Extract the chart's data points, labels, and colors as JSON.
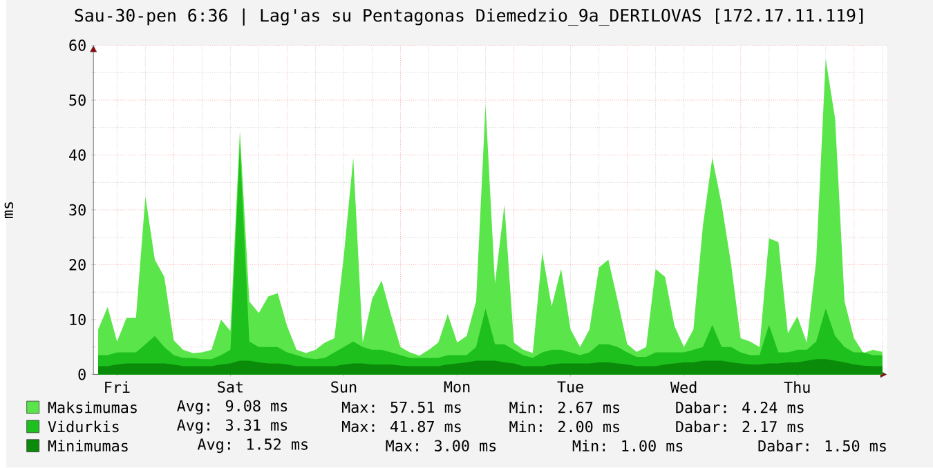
{
  "chart_data": {
    "type": "area",
    "title": "Sau-30-pen 6:36 | Lag'as su Pentagonas Diemedzio_9a_DERILOVAS [172.17.11.119]",
    "ylabel": "ms",
    "categories": [
      null,
      null,
      "Fri",
      null,
      null,
      null,
      null,
      null,
      null,
      null,
      null,
      null,
      null,
      null,
      "Sat",
      null,
      null,
      null,
      null,
      null,
      null,
      null,
      null,
      null,
      null,
      null,
      "Sun",
      null,
      null,
      null,
      null,
      null,
      null,
      null,
      null,
      null,
      null,
      null,
      "Mon",
      null,
      null,
      null,
      null,
      null,
      null,
      null,
      null,
      null,
      null,
      null,
      "Tue",
      null,
      null,
      null,
      null,
      null,
      null,
      null,
      null,
      null,
      null,
      null,
      "Wed",
      null,
      null,
      null,
      null,
      null,
      null,
      null,
      null,
      null,
      null,
      null,
      "Thu",
      null,
      null,
      null,
      null,
      null,
      null,
      null,
      null,
      null
    ],
    "ylim": [
      0,
      60
    ],
    "yticks": [
      0,
      10,
      20,
      30,
      40,
      50,
      60
    ],
    "grid": true,
    "legend": "bottom",
    "series": [
      {
        "name": "Maksimumas",
        "color": "#5ae64a",
        "values": [
          8.2,
          12.3,
          6,
          10.3,
          10.3,
          32.4,
          20.9,
          17.8,
          6.2,
          4.5,
          3.9,
          4,
          4.5,
          10,
          7.9,
          44.4,
          13.3,
          11.2,
          14.2,
          14.8,
          8.8,
          4.5,
          3.9,
          4.5,
          5.8,
          6.6,
          21.6,
          39.5,
          5.8,
          13.8,
          17.1,
          10.8,
          5,
          4,
          3.4,
          4.5,
          5.8,
          11,
          5.8,
          7,
          13.3,
          49.2,
          16.6,
          30.9,
          5.8,
          4.5,
          3.9,
          22.2,
          12.4,
          19.2,
          8.2,
          5,
          8.2,
          19.5,
          20.9,
          13.3,
          5.5,
          4.1,
          5,
          19.2,
          17.8,
          8.8,
          5,
          8.2,
          27,
          39.5,
          30.9,
          20,
          6.6,
          6,
          5,
          24.8,
          24.1,
          7.5,
          10.6,
          5.8,
          20.8,
          57.5,
          46.6,
          13.3,
          6.6,
          3.9,
          4.5,
          4.1
        ]
      },
      {
        "name": "Vidurkis",
        "color": "#1ec01e",
        "values": [
          3.5,
          3.5,
          4,
          4,
          4,
          5.5,
          7,
          5,
          3.5,
          3,
          3,
          2.8,
          2.8,
          3.5,
          4.5,
          41.8,
          6,
          5,
          5,
          5,
          4,
          3.5,
          3,
          2.8,
          3,
          4,
          5,
          6,
          5,
          4.5,
          4.5,
          4,
          3.5,
          3,
          3,
          3,
          3,
          3.5,
          3.5,
          3.5,
          5,
          12,
          5.5,
          5.5,
          4.5,
          3.5,
          3,
          4,
          4.5,
          4.5,
          4,
          3.5,
          4,
          5.5,
          5.5,
          5,
          4,
          3.2,
          3.2,
          4,
          4,
          4,
          4,
          4.5,
          5,
          9,
          5,
          5,
          4,
          3.5,
          3.5,
          9,
          4,
          4,
          4.5,
          4.5,
          6,
          12,
          7,
          5,
          4,
          4,
          3.5,
          3.5
        ]
      },
      {
        "name": "Minimumas",
        "color": "#0a8c0a",
        "values": [
          1.5,
          1.5,
          1.8,
          2,
          2,
          2,
          2,
          2,
          1.8,
          1.5,
          1.5,
          1.5,
          1.5,
          1.8,
          2,
          2.5,
          2.5,
          2.2,
          2,
          2,
          1.8,
          1.5,
          1.5,
          1.5,
          1.5,
          1.5,
          1.8,
          2,
          2,
          1.8,
          1.8,
          1.8,
          1.6,
          1.5,
          1.5,
          1.5,
          1.5,
          1.8,
          2,
          2.2,
          2.5,
          2.5,
          2.5,
          2.2,
          2,
          1.5,
          1.5,
          1.5,
          1.8,
          2,
          2,
          2,
          2,
          2.2,
          2.2,
          2,
          1.8,
          1.5,
          1.5,
          1.5,
          1.8,
          2,
          2.2,
          2.2,
          2.5,
          2.5,
          2.5,
          2.2,
          2,
          1.8,
          1.8,
          2,
          2,
          2.2,
          2.2,
          2.5,
          2.8,
          2.8,
          2.5,
          2.2,
          1.8,
          1.6,
          1.5,
          1.5
        ]
      }
    ],
    "annotations": [
      "Avg: 9.08 ms",
      "Max: 57.51 ms",
      "Min: 2.67 ms",
      "Dabar: 4.24 ms",
      "Avg: 3.31 ms",
      "Max: 41.87 ms",
      "Min: 2.00 ms",
      "Dabar: 2.17 ms",
      "Avg: 1.52 ms",
      "Max: 3.00 ms",
      "Min: 1.00 ms",
      "Dabar: 1.50 ms"
    ]
  }
}
